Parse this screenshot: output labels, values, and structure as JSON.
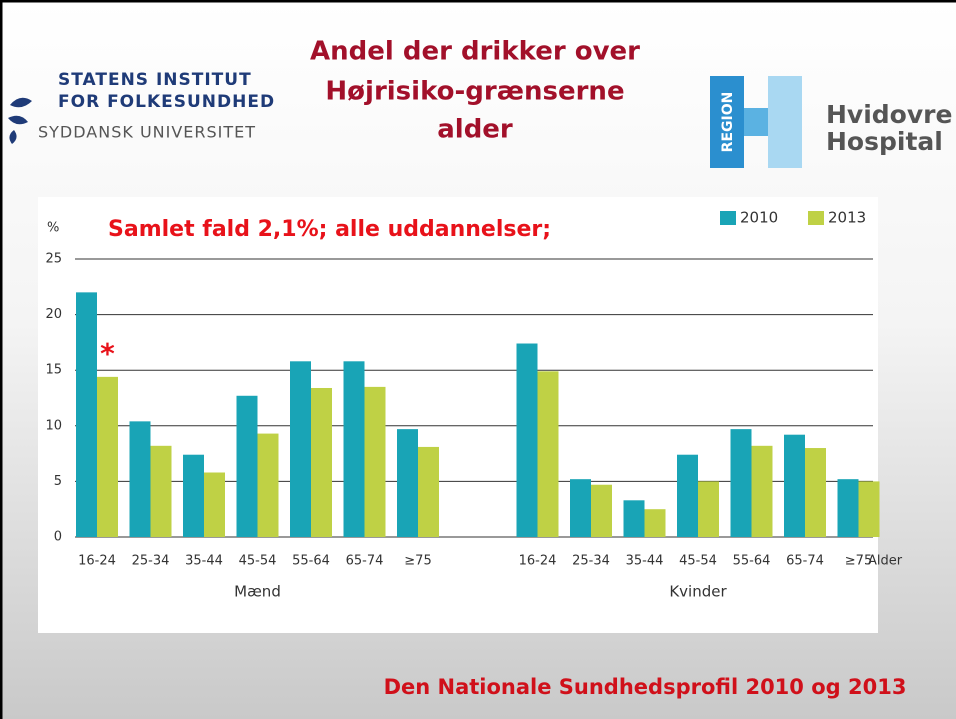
{
  "header": {
    "title": [
      "Andel der drikker over",
      "Højrisiko-grænserne",
      "alder"
    ],
    "left_logo": [
      "Statens Institut",
      "for Folkesundhed",
      "Syddansk Universitet"
    ],
    "right_logo": {
      "mark": "REGION",
      "name": [
        "Hvidovre",
        "Hospital"
      ]
    }
  },
  "chart_data": {
    "type": "bar",
    "annotation": "Samlet fald 2,1%; alle uddannelser;",
    "marker": "*",
    "ylabel": "%",
    "xlabel": "Alder",
    "groups": [
      "Mænd",
      "Kvinder"
    ],
    "categories": [
      "16-24",
      "25-34",
      "35-44",
      "45-54",
      "55-64",
      "65-74",
      "≥75",
      "16-24",
      "25-34",
      "35-44",
      "45-54",
      "55-64",
      "65-74",
      "≥75"
    ],
    "series": [
      {
        "name": "2010",
        "color": "#19a4b6",
        "values": [
          22,
          10.4,
          7.4,
          12.7,
          15.8,
          15.8,
          9.7,
          17.4,
          5.2,
          3.3,
          7.4,
          9.7,
          9.2,
          5.2
        ]
      },
      {
        "name": "2013",
        "color": "#bfd145",
        "values": [
          14.4,
          8.2,
          5.8,
          9.3,
          13.4,
          13.5,
          8.1,
          14.9,
          4.7,
          2.5,
          5.0,
          8.2,
          8.0,
          5.0
        ]
      }
    ],
    "ylim": [
      0,
      25
    ],
    "yticks": [
      0,
      5,
      10,
      15,
      20,
      25
    ],
    "grid": true,
    "legend": "top-right"
  },
  "footer": "Den Nationale Sundhedsprofil 2010 og 2013"
}
